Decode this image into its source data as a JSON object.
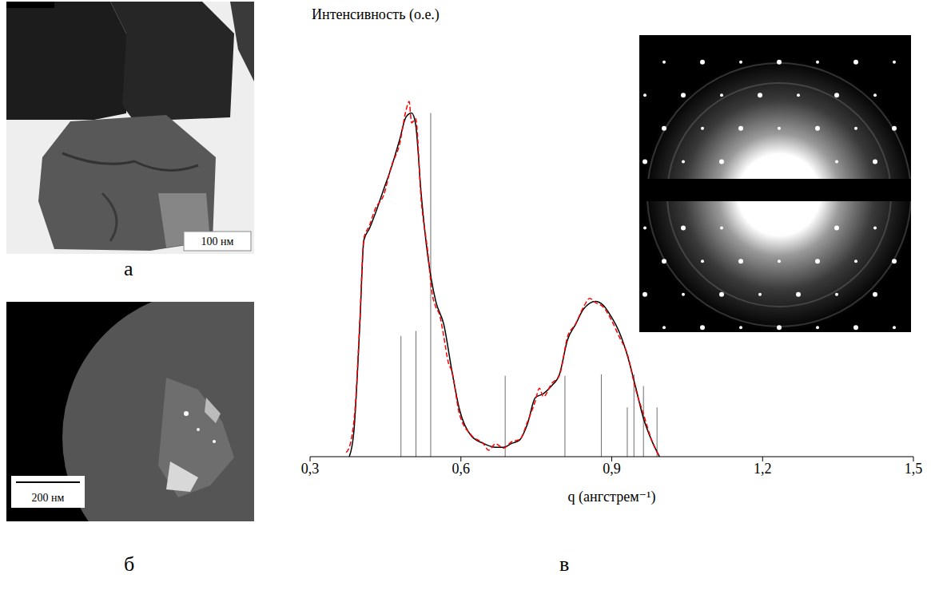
{
  "panels": [
    {
      "label": "а",
      "scale_bar": "100 нм"
    },
    {
      "label": "б",
      "scale_bar": "200 нм"
    }
  ],
  "chart_data": {
    "panel_label": "в",
    "type": "line",
    "y_label": "Интенсивность (о.е.)",
    "x_label": "q (ангстрем⁻¹)",
    "xlim": [
      0.3,
      1.5
    ],
    "xticks": [
      {
        "value": 0.3,
        "label": "0,3"
      },
      {
        "value": 0.6,
        "label": "0,6"
      },
      {
        "value": 0.9,
        "label": "0,9"
      },
      {
        "value": 1.2,
        "label": "1,2"
      },
      {
        "value": 1.5,
        "label": "1,5"
      }
    ],
    "ylim": [
      0,
      100
    ],
    "tick_labels": "x",
    "grid": false,
    "series": [
      {
        "type": "line",
        "color": "#000000",
        "line_style": "solid",
        "x": [
          0.378,
          0.387,
          0.399,
          0.407,
          0.418,
          0.43,
          0.446,
          0.462,
          0.478,
          0.491,
          0.502,
          0.51,
          0.521,
          0.534,
          0.55,
          0.566,
          0.582,
          0.597,
          0.621,
          0.645,
          0.669,
          0.685,
          0.701,
          0.717,
          0.732,
          0.748,
          0.764,
          0.78,
          0.796,
          0.812,
          0.828,
          0.844,
          0.868,
          0.883,
          0.899,
          0.915,
          0.931,
          0.947,
          0.963,
          0.979,
          0.995
        ],
        "values": [
          0,
          5.7,
          30.9,
          50.6,
          53.3,
          56.9,
          62.3,
          67.7,
          74.0,
          79.4,
          80.3,
          77.6,
          61.4,
          47.0,
          36.3,
          30.9,
          20.1,
          11.1,
          4.8,
          3.1,
          2.2,
          2.2,
          3.1,
          3.9,
          7.5,
          13.8,
          14.7,
          16.5,
          19.2,
          27.3,
          30.9,
          34.5,
          36.3,
          35.4,
          32.7,
          29.1,
          23.7,
          16.5,
          9.0,
          3.9,
          0
        ]
      },
      {
        "type": "line",
        "color": "#ff0000",
        "line_style": "dashed",
        "x": [
          0.372,
          0.38,
          0.39,
          0.399,
          0.407,
          0.418,
          0.43,
          0.446,
          0.462,
          0.478,
          0.491,
          0.497,
          0.502,
          0.51,
          0.521,
          0.534,
          0.543,
          0.55,
          0.558,
          0.566,
          0.575,
          0.582,
          0.597,
          0.621,
          0.645,
          0.655,
          0.669,
          0.685,
          0.701,
          0.717,
          0.732,
          0.748,
          0.756,
          0.764,
          0.78,
          0.796,
          0.812,
          0.828,
          0.844,
          0.856,
          0.868,
          0.883,
          0.899,
          0.915,
          0.931,
          0.947,
          0.963,
          0.979,
          0.995
        ],
        "values": [
          1,
          3,
          12,
          32,
          51,
          54,
          58,
          61,
          68,
          73,
          81,
          83,
          78,
          79,
          60,
          48,
          38,
          35,
          33,
          28,
          22,
          20,
          10,
          5,
          3,
          1.5,
          3,
          2,
          3.5,
          4,
          8,
          13,
          16,
          14,
          17,
          19,
          28,
          31,
          35,
          37,
          36,
          35,
          32,
          28,
          24,
          16,
          10,
          4,
          0
        ]
      },
      {
        "type": "bar",
        "color": "#000000",
        "x": [
          0.481,
          0.511,
          0.54,
          0.688,
          0.807,
          0.879,
          0.931,
          0.944,
          0.963,
          0.99
        ],
        "values": [
          28.2,
          29.4,
          80.3,
          18.9,
          18.9,
          19.2,
          11.5,
          19.2,
          16.5,
          11.5
        ]
      }
    ]
  }
}
